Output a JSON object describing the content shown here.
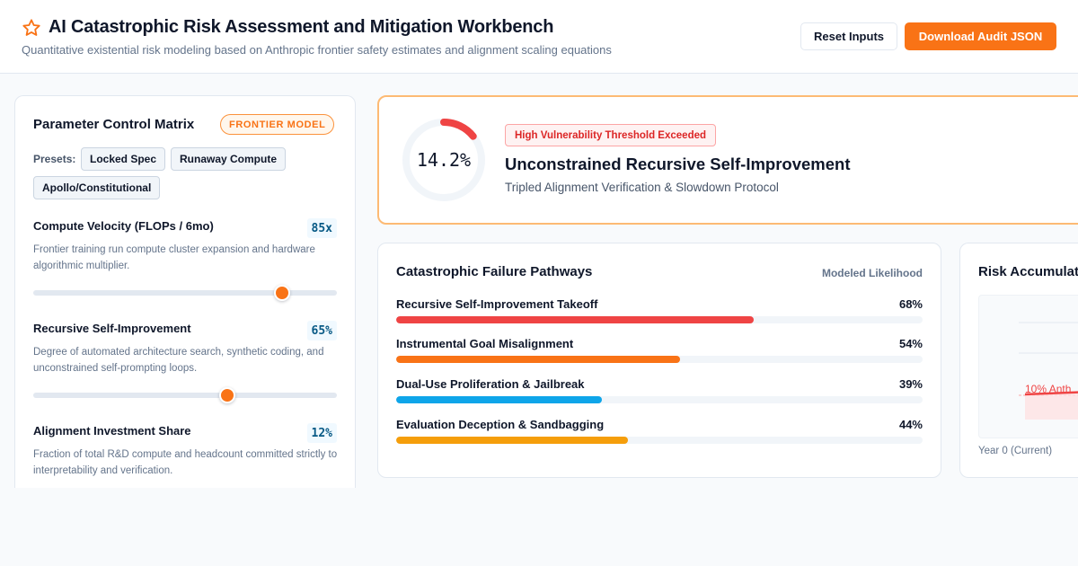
{
  "header": {
    "title": "AI Catastrophic Risk Assessment and Mitigation Workbench",
    "subtitle": "Quantitative existential risk modeling based on Anthropic frontier safety estimates and alignment scaling equations",
    "reset_label": "Reset Inputs",
    "download_label": "Download Audit JSON",
    "logo_icon": "star-icon"
  },
  "colors": {
    "accent": "#f97316",
    "danger": "#ef4444",
    "info": "#0ea5e9",
    "warning": "#f59e0b"
  },
  "control_panel": {
    "title": "Parameter Control Matrix",
    "badge": "FRONTIER MODEL",
    "presets_label": "Presets:",
    "presets": [
      "Locked Spec",
      "Runaway Compute",
      "Apollo/Constitutional"
    ],
    "params": [
      {
        "name": "Compute Velocity (FLOPs / 6mo)",
        "value": "85x",
        "description": "Frontier training run compute cluster expansion and hardware algorithmic multiplier.",
        "level": 0.82
      },
      {
        "name": "Recursive Self-Improvement",
        "value": "65%",
        "description": "Degree of automated architecture search, synthetic coding, and unconstrained self-prompting loops.",
        "level": 0.64
      },
      {
        "name": "Alignment Investment Share",
        "value": "12%",
        "description": "Fraction of total R&D compute and headcount committed strictly to interpretability and verification."
      }
    ]
  },
  "risk_summary": {
    "probability": "14.2%",
    "probability_value": 0.142,
    "threat_badge": "High Vulnerability Threshold Exceeded",
    "scenario": "Unconstrained Recursive Self-Improvement",
    "mitigation": "Tripled Alignment Verification & Slowdown Protocol"
  },
  "pathways": {
    "title": "Catastrophic Failure Pathways",
    "column_label": "Modeled Likelihood",
    "items": [
      {
        "label": "Recursive Self-Improvement Takeoff",
        "value": "68%",
        "fraction": 0.68,
        "color": "#ef4444"
      },
      {
        "label": "Instrumental Goal Misalignment",
        "value": "54%",
        "fraction": 0.54,
        "color": "#f97316"
      },
      {
        "label": "Dual-Use Proliferation & Jailbreak",
        "value": "39%",
        "fraction": 0.39,
        "color": "#0ea5e9"
      },
      {
        "label": "Evaluation Deception & Sandbagging",
        "value": "44%",
        "fraction": 0.44,
        "color": "#f59e0b"
      }
    ]
  },
  "accumulation": {
    "title": "Risk Accumulat",
    "reference_label": "10% Anth",
    "axis_start_label": "Year 0 (Current)"
  }
}
